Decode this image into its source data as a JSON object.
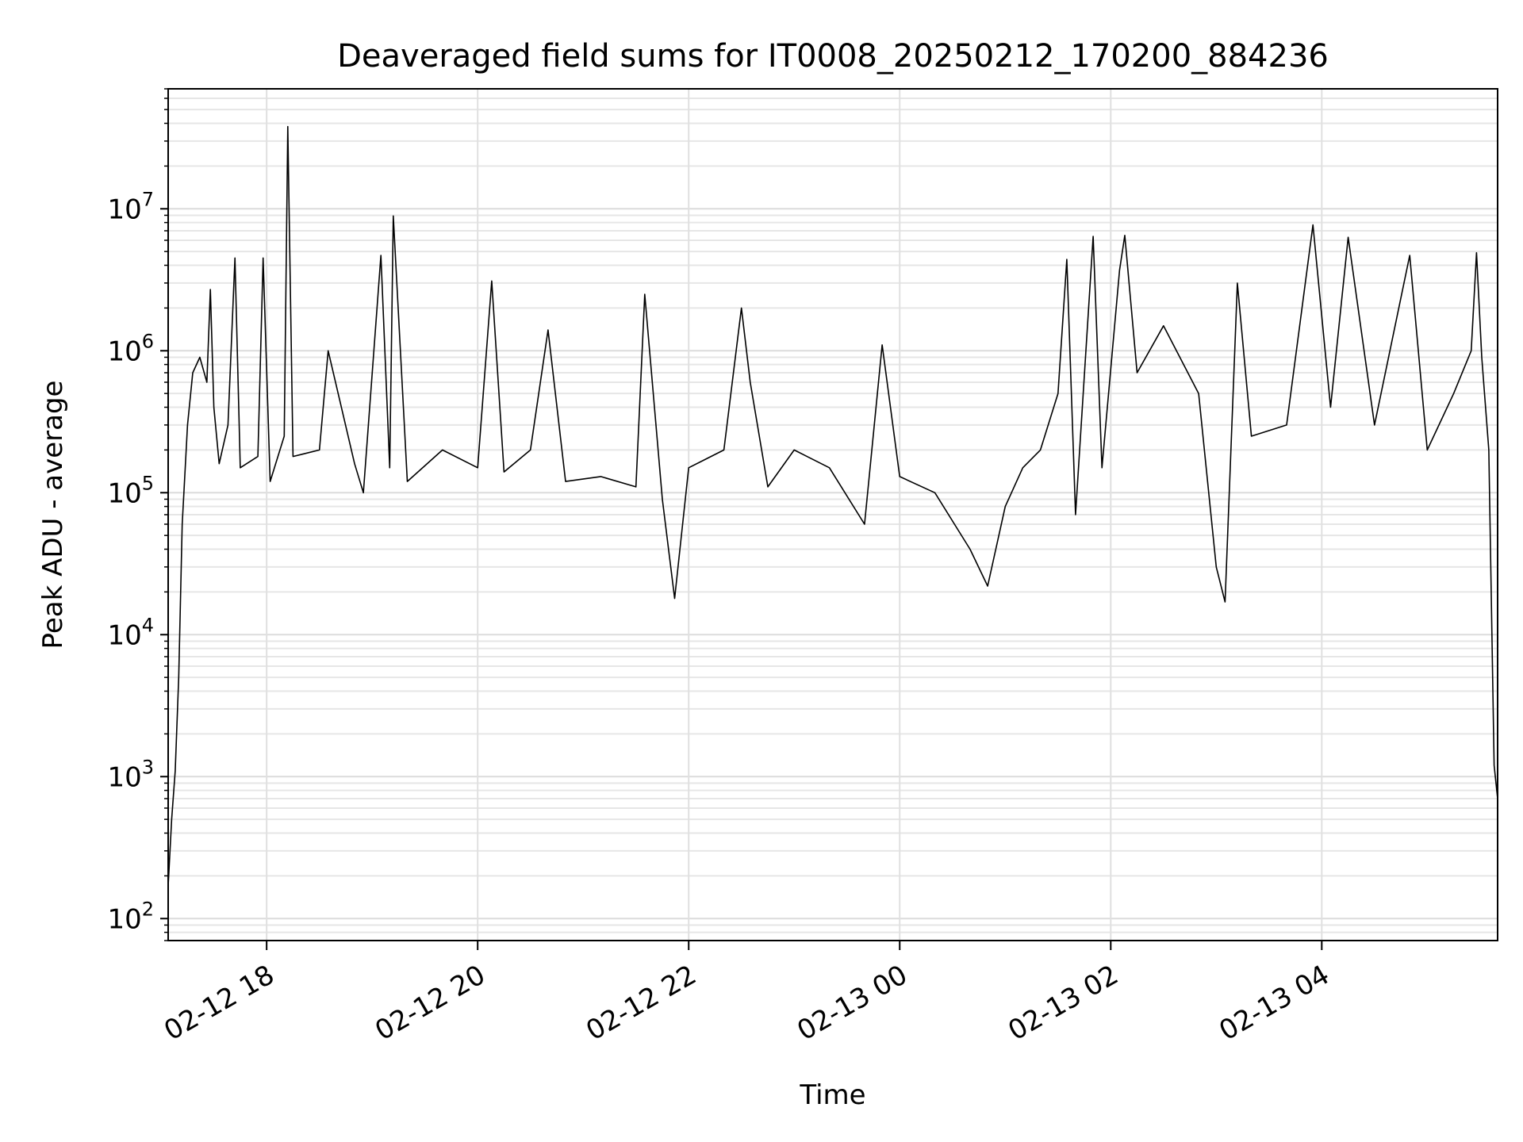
{
  "chart_data": {
    "type": "line",
    "title": "Deaveraged field sums for IT0008_20250212_170200_884236",
    "xlabel": "Time",
    "ylabel": "Peak ADU - average",
    "yscale": "log",
    "xlim": [
      "2025-02-12 17:04",
      "2025-02-13 05:40"
    ],
    "ylim": [
      70,
      70000000
    ],
    "grid": true,
    "line_color": "#000000",
    "x_ticks": [
      {
        "t": "2025-02-12 18:00",
        "label": "02-12 18"
      },
      {
        "t": "2025-02-12 20:00",
        "label": "02-12 20"
      },
      {
        "t": "2025-02-12 22:00",
        "label": "02-12 22"
      },
      {
        "t": "2025-02-13 00:00",
        "label": "02-13 00"
      },
      {
        "t": "2025-02-13 02:00",
        "label": "02-13 02"
      },
      {
        "t": "2025-02-13 04:00",
        "label": "02-13 04"
      }
    ],
    "y_ticks": [
      {
        "value": 100,
        "exp": "2"
      },
      {
        "value": 1000,
        "exp": "3"
      },
      {
        "value": 10000,
        "exp": "4"
      },
      {
        "value": 100000,
        "exp": "5"
      },
      {
        "value": 1000000,
        "exp": "6"
      },
      {
        "value": 10000000,
        "exp": "7"
      }
    ],
    "series": [
      {
        "name": "",
        "points": [
          [
            "2025-02-12 17:04",
            170
          ],
          [
            "2025-02-12 17:06",
            500
          ],
          [
            "2025-02-12 17:08",
            1100
          ],
          [
            "2025-02-12 17:10",
            5000
          ],
          [
            "2025-02-12 17:12",
            60000
          ],
          [
            "2025-02-12 17:15",
            300000
          ],
          [
            "2025-02-12 17:18",
            700000
          ],
          [
            "2025-02-12 17:22",
            900000
          ],
          [
            "2025-02-12 17:26",
            600000
          ],
          [
            "2025-02-12 17:28",
            2700000
          ],
          [
            "2025-02-12 17:30",
            400000
          ],
          [
            "2025-02-12 17:33",
            160000
          ],
          [
            "2025-02-12 17:38",
            300000
          ],
          [
            "2025-02-12 17:42",
            4500000
          ],
          [
            "2025-02-12 17:45",
            150000
          ],
          [
            "2025-02-12 17:55",
            180000
          ],
          [
            "2025-02-12 17:58",
            4500000
          ],
          [
            "2025-02-12 18:02",
            120000
          ],
          [
            "2025-02-12 18:10",
            250000
          ],
          [
            "2025-02-12 18:12",
            38000000
          ],
          [
            "2025-02-12 18:15",
            180000
          ],
          [
            "2025-02-12 18:30",
            200000
          ],
          [
            "2025-02-12 18:35",
            1000000
          ],
          [
            "2025-02-12 18:50",
            160000
          ],
          [
            "2025-02-12 18:55",
            100000
          ],
          [
            "2025-02-12 19:05",
            4700000
          ],
          [
            "2025-02-12 19:10",
            150000
          ],
          [
            "2025-02-12 19:12",
            8900000
          ],
          [
            "2025-02-12 19:20",
            120000
          ],
          [
            "2025-02-12 19:40",
            200000
          ],
          [
            "2025-02-12 20:00",
            150000
          ],
          [
            "2025-02-12 20:08",
            3100000
          ],
          [
            "2025-02-12 20:15",
            140000
          ],
          [
            "2025-02-12 20:30",
            200000
          ],
          [
            "2025-02-12 20:40",
            1400000
          ],
          [
            "2025-02-12 20:50",
            120000
          ],
          [
            "2025-02-12 21:10",
            130000
          ],
          [
            "2025-02-12 21:30",
            110000
          ],
          [
            "2025-02-12 21:35",
            2500000
          ],
          [
            "2025-02-12 21:45",
            90000
          ],
          [
            "2025-02-12 21:52",
            18000
          ],
          [
            "2025-02-12 22:00",
            150000
          ],
          [
            "2025-02-12 22:20",
            200000
          ],
          [
            "2025-02-12 22:30",
            2000000
          ],
          [
            "2025-02-12 22:35",
            600000
          ],
          [
            "2025-02-12 22:45",
            110000
          ],
          [
            "2025-02-12 23:00",
            200000
          ],
          [
            "2025-02-12 23:20",
            150000
          ],
          [
            "2025-02-12 23:40",
            60000
          ],
          [
            "2025-02-12 23:50",
            1100000
          ],
          [
            "2025-02-13 00:00",
            130000
          ],
          [
            "2025-02-13 00:20",
            100000
          ],
          [
            "2025-02-13 00:40",
            40000
          ],
          [
            "2025-02-13 00:50",
            22000
          ],
          [
            "2025-02-13 01:00",
            80000
          ],
          [
            "2025-02-13 01:10",
            150000
          ],
          [
            "2025-02-13 01:20",
            200000
          ],
          [
            "2025-02-13 01:30",
            500000
          ],
          [
            "2025-02-13 01:35",
            4400000
          ],
          [
            "2025-02-13 01:40",
            70000
          ],
          [
            "2025-02-13 01:50",
            6400000
          ],
          [
            "2025-02-13 01:55",
            150000
          ],
          [
            "2025-02-13 02:05",
            3700000
          ],
          [
            "2025-02-13 02:08",
            6500000
          ],
          [
            "2025-02-13 02:15",
            700000
          ],
          [
            "2025-02-13 02:30",
            1500000
          ],
          [
            "2025-02-13 02:50",
            500000
          ],
          [
            "2025-02-13 03:00",
            30000
          ],
          [
            "2025-02-13 03:05",
            17000
          ],
          [
            "2025-02-13 03:12",
            3000000
          ],
          [
            "2025-02-13 03:20",
            250000
          ],
          [
            "2025-02-13 03:40",
            300000
          ],
          [
            "2025-02-13 03:55",
            7700000
          ],
          [
            "2025-02-13 04:05",
            400000
          ],
          [
            "2025-02-13 04:15",
            6300000
          ],
          [
            "2025-02-13 04:30",
            300000
          ],
          [
            "2025-02-13 04:50",
            4700000
          ],
          [
            "2025-02-13 05:00",
            200000
          ],
          [
            "2025-02-13 05:15",
            500000
          ],
          [
            "2025-02-13 05:25",
            1000000
          ],
          [
            "2025-02-13 05:28",
            4900000
          ],
          [
            "2025-02-13 05:31",
            900000
          ],
          [
            "2025-02-13 05:35",
            200000
          ],
          [
            "2025-02-13 05:38",
            1200
          ],
          [
            "2025-02-13 05:40",
            700
          ]
        ]
      }
    ]
  }
}
